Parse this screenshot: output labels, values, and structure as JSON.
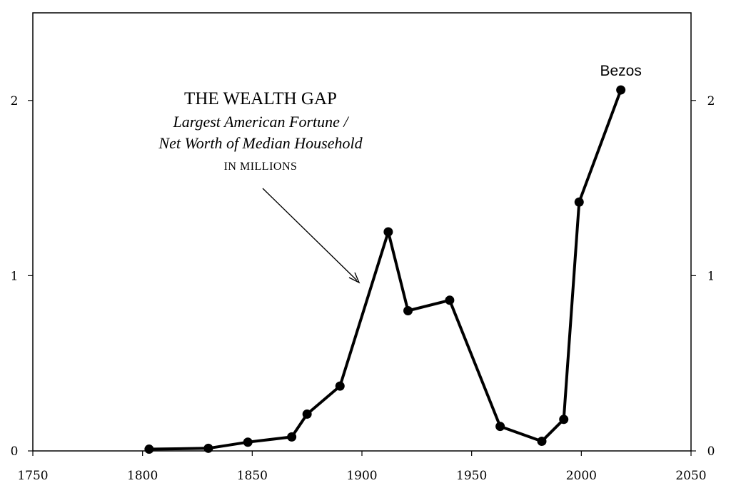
{
  "chart_data": {
    "type": "line",
    "title": "THE WEALTH GAP",
    "subtitle_lines": [
      "Largest American Fortune /",
      "Net Worth of Median Household"
    ],
    "unit_label": "IN MILLIONS",
    "xlim": [
      1750,
      2050
    ],
    "ylim": [
      0,
      2.5
    ],
    "x_ticks": [
      1750,
      1800,
      1850,
      1900,
      1950,
      2000,
      2050
    ],
    "y_ticks": [
      0,
      1,
      2
    ],
    "grid": false,
    "legend": "none",
    "series": [
      {
        "x": [
          1803,
          1830,
          1848,
          1868,
          1875,
          1890,
          1912,
          1921,
          1940,
          1963,
          1982,
          1992,
          1999,
          2018
        ],
        "y": [
          0.01,
          0.015,
          0.05,
          0.08,
          0.21,
          0.37,
          1.25,
          0.8,
          0.86,
          0.14,
          0.055,
          0.18,
          1.42,
          2.06
        ]
      }
    ],
    "annotations": [
      {
        "text": "Bezos",
        "x": 2018,
        "y": 2.06
      }
    ]
  }
}
